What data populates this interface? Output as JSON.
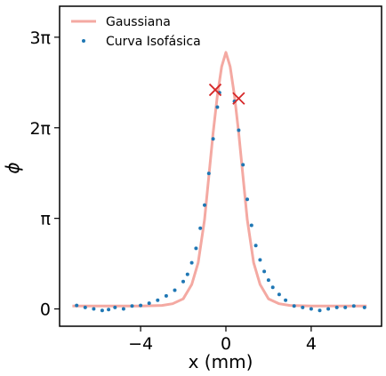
{
  "chart_data": {
    "type": "scatter",
    "xlabel": "x (mm)",
    "ylabel": "ϕ",
    "xlim": [
      -7.8,
      7.3
    ],
    "ylim": [
      -0.6,
      10.5
    ],
    "xticks": [
      {
        "value": -4,
        "label": "−4"
      },
      {
        "value": 0,
        "label": "0"
      },
      {
        "value": 4,
        "label": "4"
      }
    ],
    "yticks": [
      {
        "value": 0,
        "label": "0"
      },
      {
        "value": 3.1416,
        "label": "π"
      },
      {
        "value": 6.2832,
        "label": "2π"
      },
      {
        "value": 9.4248,
        "label": "3π"
      }
    ],
    "grid": false,
    "legend_position": "top-left",
    "series": [
      {
        "name": "Gaussiana",
        "kind": "line",
        "color": "#f4a9a2",
        "x": [
          -7.2,
          -4.0,
          -3.0,
          -2.5,
          -2.0,
          -1.6,
          -1.3,
          -1.0,
          -0.8,
          -0.6,
          -0.4,
          -0.2,
          0.0,
          0.2,
          0.4,
          0.6,
          0.8,
          1.0,
          1.3,
          1.6,
          2.0,
          2.5,
          3.0,
          4.0,
          6.6
        ],
        "y": [
          0.1,
          0.1,
          0.12,
          0.18,
          0.35,
          0.85,
          1.6,
          3.1,
          4.6,
          6.1,
          7.4,
          8.4,
          8.9,
          8.4,
          7.4,
          6.1,
          4.6,
          3.1,
          1.6,
          0.85,
          0.35,
          0.18,
          0.12,
          0.1,
          0.1
        ]
      },
      {
        "name": "Curva Isofásica",
        "kind": "scatter",
        "color": "#1f77b4",
        "x": [
          -7.0,
          -6.6,
          -6.2,
          -5.8,
          -5.5,
          -5.2,
          -4.8,
          -4.4,
          -4.0,
          -3.6,
          -3.2,
          -2.8,
          -2.4,
          -2.0,
          -1.8,
          -1.6,
          -1.4,
          -1.2,
          -1.0,
          -0.8,
          -0.6,
          -0.4,
          -0.3,
          0.4,
          0.6,
          0.8,
          1.0,
          1.2,
          1.4,
          1.6,
          1.8,
          2.0,
          2.2,
          2.5,
          2.8,
          3.2,
          3.6,
          4.0,
          4.4,
          4.8,
          5.2,
          5.6,
          6.0,
          6.5
        ],
        "y": [
          0.12,
          0.05,
          0.0,
          -0.05,
          -0.02,
          0.05,
          0.0,
          0.1,
          0.12,
          0.2,
          0.3,
          0.45,
          0.65,
          0.95,
          1.2,
          1.6,
          2.1,
          2.8,
          3.6,
          4.7,
          5.9,
          7.0,
          7.5,
          7.2,
          6.2,
          5.0,
          3.8,
          2.9,
          2.2,
          1.7,
          1.3,
          1.0,
          0.75,
          0.5,
          0.3,
          0.1,
          0.05,
          0.0,
          -0.05,
          0.0,
          0.05,
          0.05,
          0.1,
          0.05
        ]
      },
      {
        "name": "",
        "kind": "markers",
        "color": "#d62728",
        "x": [
          -0.5,
          0.6
        ],
        "y": [
          7.6,
          7.3
        ]
      }
    ]
  }
}
